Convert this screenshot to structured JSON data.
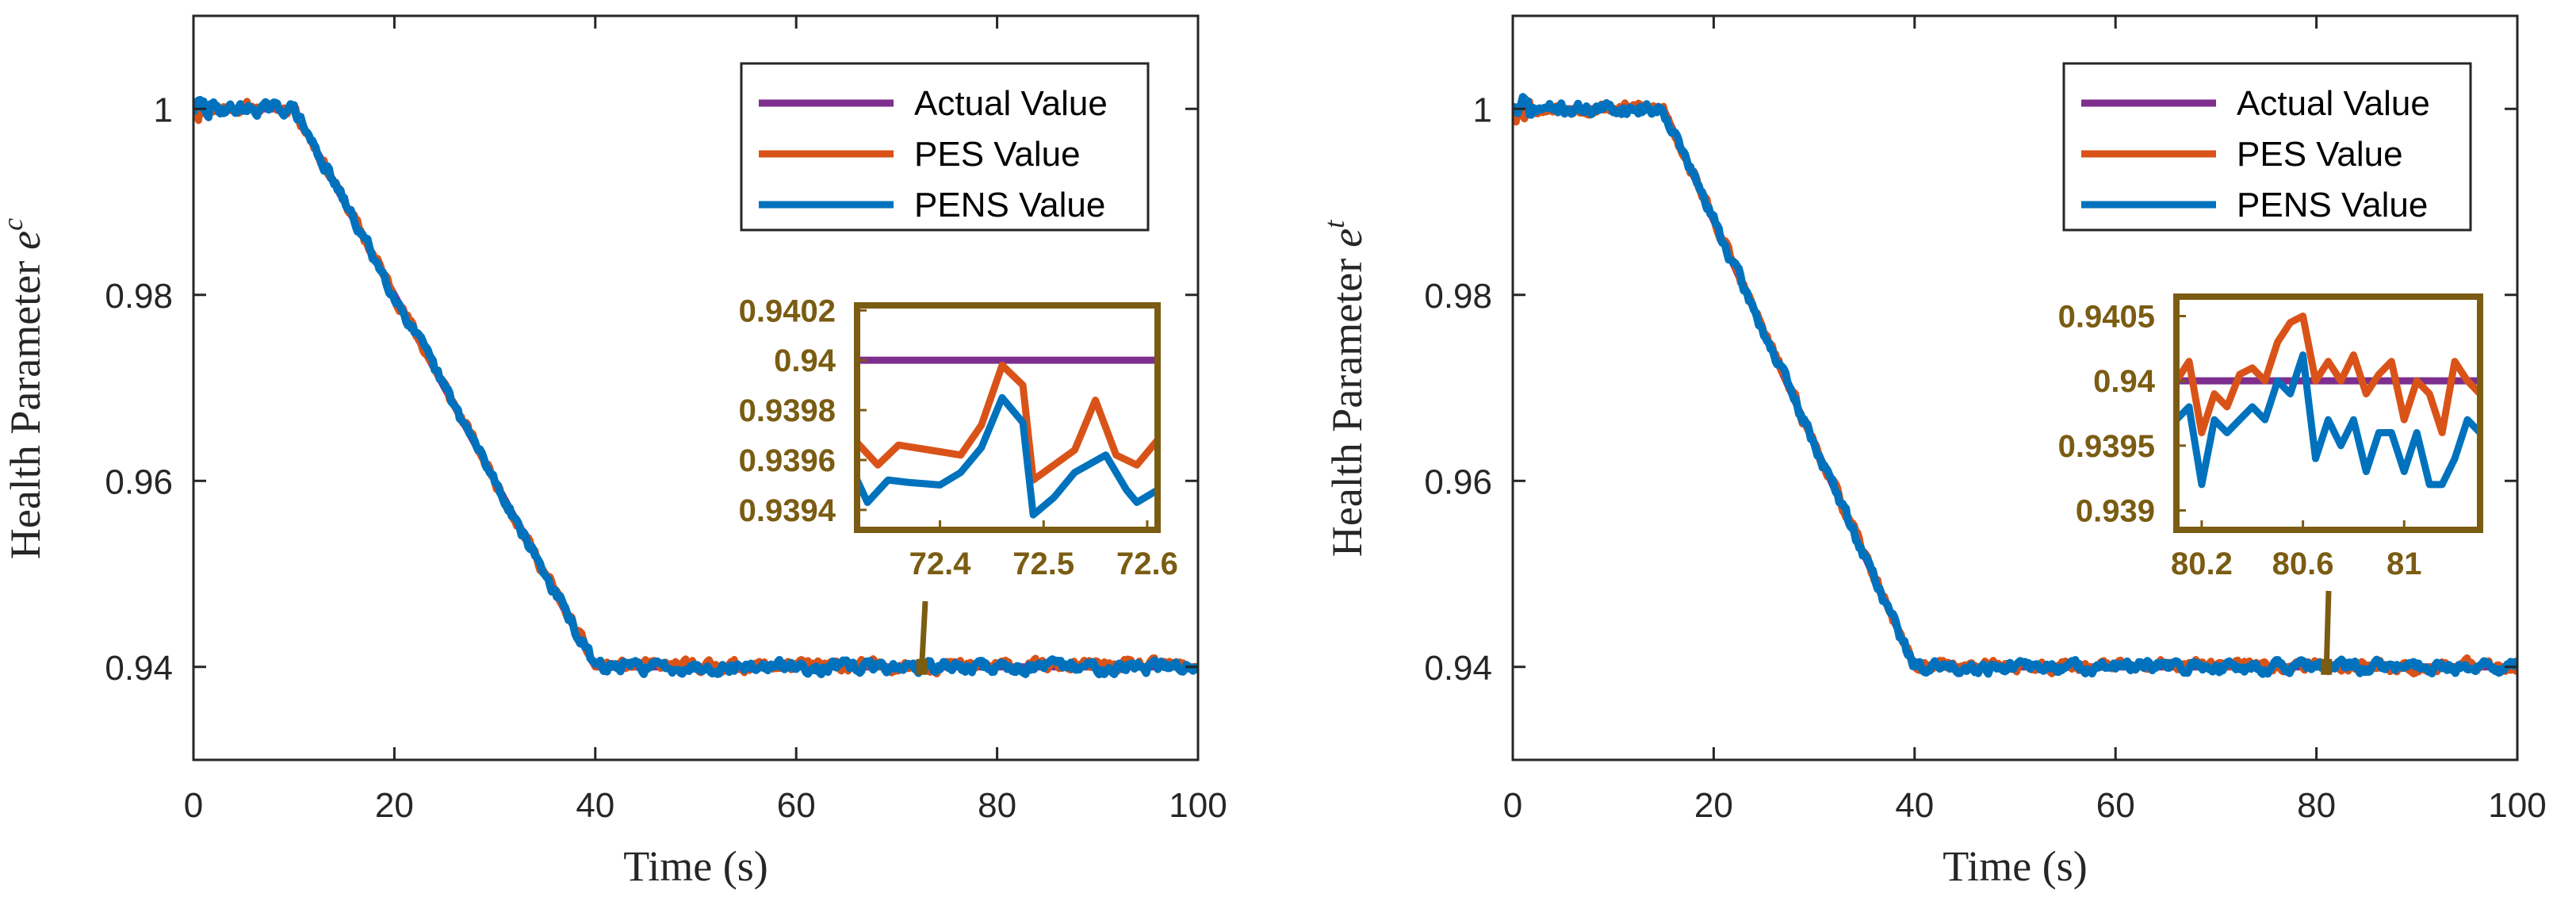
{
  "colors": {
    "actual": "#7E2F8E",
    "pes": "#D95319",
    "pens": "#0072BD",
    "inset": "#7A5C12",
    "axis": "#262626"
  },
  "legend_labels": [
    "Actual Value",
    "PES Value",
    "PENS Value"
  ],
  "chart_data": [
    {
      "type": "line",
      "xlabel": "Time (s)",
      "ylabel_text": "Health Parameter",
      "ylabel_symbol": "e",
      "ylabel_superscript": "c",
      "xlim": [
        0,
        100
      ],
      "ylim": [
        0.93,
        1.01
      ],
      "xticks": [
        0,
        20,
        40,
        60,
        80,
        100
      ],
      "xtick_labels": [
        "0",
        "20",
        "40",
        "60",
        "80",
        "100"
      ],
      "yticks": [
        0.94,
        0.96,
        0.98,
        1.0
      ],
      "ytick_labels": [
        "0.94",
        "0.96",
        "0.98",
        "1"
      ],
      "legend_position": "top-right",
      "series": [
        {
          "name": "Actual Value",
          "x": [
            0,
            10,
            40,
            100
          ],
          "y": [
            1.0,
            1.0,
            0.94,
            0.94
          ]
        },
        {
          "name": "PES Value",
          "description": "noisy estimate tracking actual value"
        },
        {
          "name": "PENS Value",
          "description": "noisy estimate tracking actual value"
        }
      ],
      "annotation_point": {
        "x": 72.5,
        "y": 0.94
      },
      "inset": {
        "xlim": [
          72.32,
          72.61
        ],
        "ylim": [
          0.93932,
          0.94022
        ],
        "xticks": [
          72.4,
          72.5,
          72.6
        ],
        "xtick_labels": [
          "72.4",
          "72.5",
          "72.6"
        ],
        "yticks": [
          0.9394,
          0.9396,
          0.9398,
          0.94,
          0.9402
        ],
        "ytick_labels": [
          "0.9394",
          "0.9396",
          "0.9398",
          "0.94",
          "0.9402"
        ],
        "series": [
          {
            "name": "Actual Value",
            "x": [
              72.32,
              72.61
            ],
            "y": [
              0.94,
              0.94
            ]
          },
          {
            "name": "PES Value",
            "x": [
              72.32,
              72.34,
              72.36,
              72.39,
              72.42,
              72.44,
              72.46,
              72.48,
              72.49,
              72.51,
              72.53,
              72.55,
              72.57,
              72.59,
              72.61
            ],
            "y": [
              0.93967,
              0.93958,
              0.93966,
              0.93964,
              0.93962,
              0.93974,
              0.93998,
              0.9399,
              0.93952,
              0.93958,
              0.93964,
              0.93984,
              0.93962,
              0.93958,
              0.93968
            ]
          },
          {
            "name": "PENS Value",
            "x": [
              72.32,
              72.33,
              72.35,
              72.37,
              72.4,
              72.42,
              72.44,
              72.46,
              72.48,
              72.49,
              72.51,
              72.53,
              72.56,
              72.58,
              72.59,
              72.61
            ],
            "y": [
              0.93952,
              0.93943,
              0.93952,
              0.93951,
              0.9395,
              0.93955,
              0.93965,
              0.93985,
              0.93975,
              0.93938,
              0.93945,
              0.93955,
              0.93962,
              0.93948,
              0.93943,
              0.93948
            ]
          }
        ]
      }
    },
    {
      "type": "line",
      "xlabel": "Time (s)",
      "ylabel_text": "Health Parameter",
      "ylabel_symbol": "e",
      "ylabel_superscript": "t",
      "xlim": [
        0,
        100
      ],
      "ylim": [
        0.93,
        1.01
      ],
      "xticks": [
        0,
        20,
        40,
        60,
        80,
        100
      ],
      "xtick_labels": [
        "0",
        "20",
        "40",
        "60",
        "80",
        "100"
      ],
      "yticks": [
        0.94,
        0.96,
        0.98,
        1.0
      ],
      "ytick_labels": [
        "0.94",
        "0.96",
        "0.98",
        "1"
      ],
      "legend_position": "top-right",
      "series": [
        {
          "name": "Actual Value",
          "x": [
            0,
            15,
            40,
            100
          ],
          "y": [
            1.0,
            1.0,
            0.94,
            0.94
          ]
        },
        {
          "name": "PES Value",
          "description": "noisy estimate tracking actual value"
        },
        {
          "name": "PENS Value",
          "description": "noisy estimate tracking actual value"
        }
      ],
      "annotation_point": {
        "x": 81,
        "y": 0.94
      },
      "inset": {
        "xlim": [
          80.1,
          81.3
        ],
        "ylim": [
          0.93885,
          0.94065
        ],
        "xticks": [
          80.2,
          80.6,
          81.0
        ],
        "xtick_labels": [
          "80.2",
          "80.6",
          "81"
        ],
        "yticks": [
          0.939,
          0.9395,
          0.94,
          0.9405
        ],
        "ytick_labels": [
          "0.939",
          "0.9395",
          "0.94",
          "0.9405"
        ],
        "series": [
          {
            "name": "Actual Value",
            "x": [
              80.1,
              81.3
            ],
            "y": [
              0.94,
              0.94
            ]
          },
          {
            "name": "PES Value",
            "x": [
              80.1,
              80.15,
              80.2,
              80.25,
              80.3,
              80.35,
              80.4,
              80.45,
              80.5,
              80.55,
              80.6,
              80.65,
              80.7,
              80.75,
              80.8,
              80.85,
              80.9,
              80.95,
              81.0,
              81.05,
              81.1,
              81.15,
              81.2,
              81.25,
              81.3
            ],
            "y": [
              0.94,
              0.94015,
              0.9396,
              0.9399,
              0.9398,
              0.94005,
              0.9401,
              0.94,
              0.9403,
              0.94045,
              0.9405,
              0.94,
              0.94015,
              0.94,
              0.9402,
              0.9399,
              0.94005,
              0.94015,
              0.9397,
              0.94,
              0.9399,
              0.9396,
              0.94015,
              0.94,
              0.9399
            ]
          },
          {
            "name": "PENS Value",
            "x": [
              80.1,
              80.15,
              80.2,
              80.25,
              80.3,
              80.35,
              80.4,
              80.45,
              80.5,
              80.55,
              80.6,
              80.65,
              80.7,
              80.75,
              80.8,
              80.85,
              80.9,
              80.95,
              81.0,
              81.05,
              81.1,
              81.15,
              81.2,
              81.25,
              81.3
            ],
            "y": [
              0.9397,
              0.9398,
              0.9392,
              0.9397,
              0.9396,
              0.9397,
              0.9398,
              0.9397,
              0.94,
              0.9399,
              0.9402,
              0.9394,
              0.9397,
              0.9395,
              0.9397,
              0.9393,
              0.9396,
              0.9396,
              0.9393,
              0.9396,
              0.9392,
              0.9392,
              0.9394,
              0.9397,
              0.9396
            ]
          }
        ]
      }
    }
  ]
}
